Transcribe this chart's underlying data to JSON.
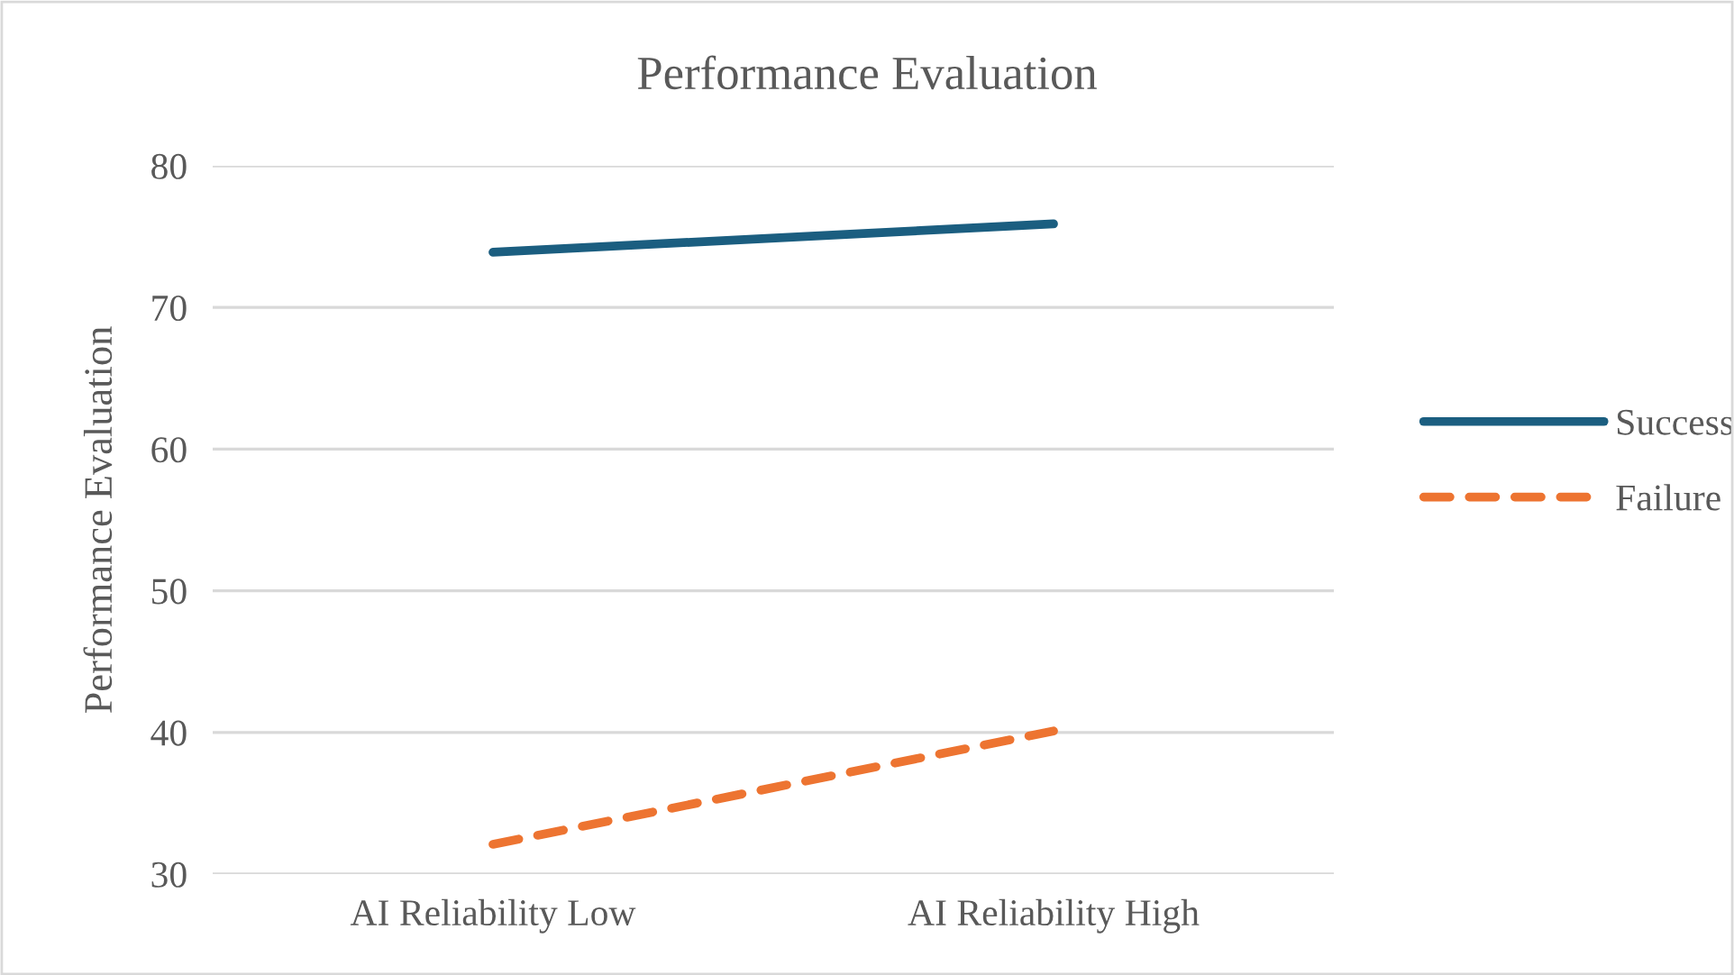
{
  "chart_data": {
    "type": "line",
    "title": "Performance Evaluation",
    "ylabel": "Performance Evaluation",
    "categories": [
      "AI Reliability Low",
      "AI Reliability High"
    ],
    "series": [
      {
        "name": "Success",
        "color": "#1b5e80",
        "values": [
          73.9,
          75.9
        ],
        "line_style": "solid"
      },
      {
        "name": "Failure",
        "color": "#ed7431",
        "values": [
          32.1,
          40.1
        ],
        "line_style": "dashed"
      }
    ],
    "ylim": [
      30,
      80
    ],
    "yticks": [
      30,
      40,
      50,
      60,
      70,
      80
    ],
    "grid": "y",
    "legend": "right",
    "marker": "none"
  }
}
